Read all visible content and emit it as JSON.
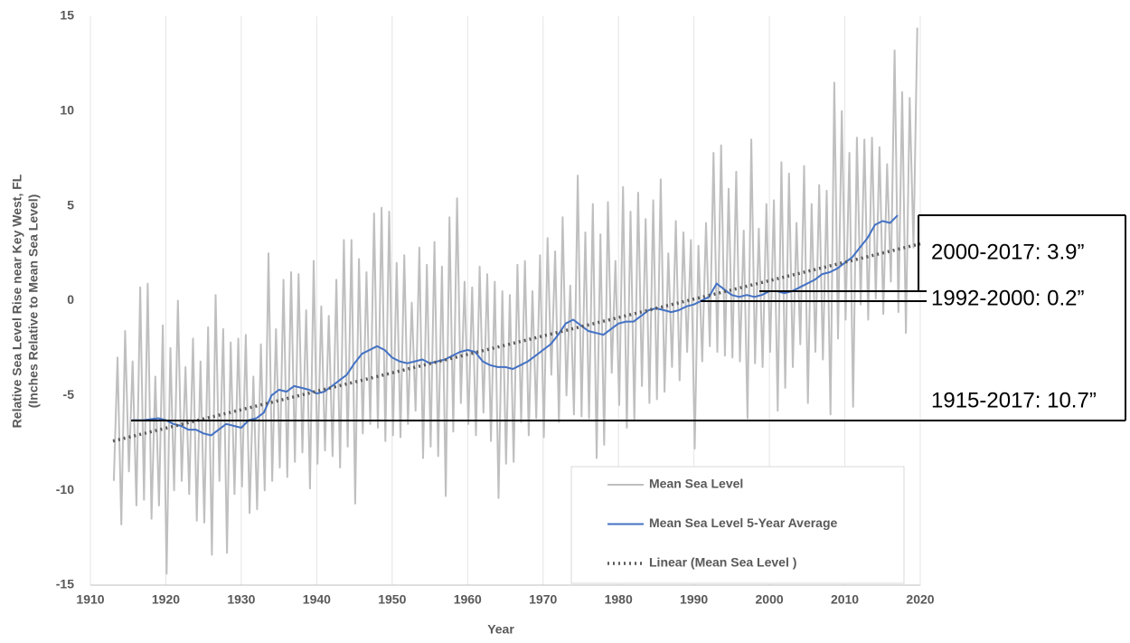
{
  "chart_data": {
    "type": "line",
    "x_label": "Year",
    "y_label": [
      "Relative Sea Level Rise near Key West, FL",
      "(Inches Relative to Mean Sea Level)"
    ],
    "xlim": [
      1910,
      2020
    ],
    "xticks": [
      1910,
      1920,
      1930,
      1940,
      1950,
      1960,
      1970,
      1980,
      1990,
      2000,
      2010,
      2020
    ],
    "ylim": [
      -15,
      15
    ],
    "yticks": [
      -15,
      -10,
      -5,
      0,
      5,
      10,
      15
    ],
    "grid": true,
    "legend": "lower right",
    "series": [
      {
        "name": "Mean Sea Level",
        "color": "#bfbfbf",
        "style": "solid",
        "x": [
          1913.1,
          1913.6,
          1914.1,
          1914.6,
          1915.1,
          1915.6,
          1916.1,
          1916.6,
          1917.1,
          1917.6,
          1918.1,
          1918.6,
          1919.1,
          1919.6,
          1920.1,
          1920.6,
          1921.1,
          1921.6,
          1922.1,
          1922.6,
          1923.1,
          1923.6,
          1924.1,
          1924.6,
          1925.1,
          1925.6,
          1926.1,
          1926.6,
          1927.1,
          1927.6,
          1928.1,
          1928.6,
          1929.1,
          1929.6,
          1930.1,
          1930.6,
          1931.1,
          1931.6,
          1932.1,
          1932.6,
          1933.1,
          1933.6,
          1934.1,
          1934.6,
          1935.1,
          1935.6,
          1936.1,
          1936.6,
          1937.1,
          1937.6,
          1938.1,
          1938.6,
          1939.1,
          1939.6,
          1940.1,
          1940.6,
          1941.1,
          1941.6,
          1942.1,
          1942.6,
          1943.1,
          1943.6,
          1944.1,
          1944.6,
          1945.1,
          1945.6,
          1946.1,
          1946.6,
          1947.1,
          1947.6,
          1948.1,
          1948.6,
          1949.1,
          1949.6,
          1950.1,
          1950.6,
          1951.1,
          1951.6,
          1952.1,
          1952.6,
          1953.1,
          1953.6,
          1954.1,
          1954.6,
          1955.1,
          1955.6,
          1956.1,
          1956.6,
          1957.1,
          1957.6,
          1958.1,
          1958.6,
          1959.1,
          1959.6,
          1960.1,
          1960.6,
          1961.1,
          1961.6,
          1962.1,
          1962.6,
          1963.1,
          1963.6,
          1964.1,
          1964.6,
          1965.1,
          1965.6,
          1966.1,
          1966.6,
          1967.1,
          1967.6,
          1968.1,
          1968.6,
          1969.1,
          1969.6,
          1970.1,
          1970.6,
          1971.1,
          1971.6,
          1972.1,
          1972.6,
          1973.1,
          1973.6,
          1974.1,
          1974.6,
          1975.1,
          1975.6,
          1976.1,
          1976.6,
          1977.1,
          1977.6,
          1978.1,
          1978.6,
          1979.1,
          1979.6,
          1980.1,
          1980.6,
          1981.1,
          1981.6,
          1982.1,
          1982.6,
          1983.1,
          1983.6,
          1984.1,
          1984.6,
          1985.1,
          1985.6,
          1986.1,
          1986.6,
          1987.1,
          1987.6,
          1988.1,
          1988.6,
          1989.1,
          1989.6,
          1990.1,
          1990.6,
          1991.1,
          1991.6,
          1992.1,
          1992.6,
          1993.1,
          1993.6,
          1994.1,
          1994.6,
          1995.1,
          1995.6,
          1996.1,
          1996.6,
          1997.1,
          1997.6,
          1998.1,
          1998.6,
          1999.1,
          1999.6,
          2000.1,
          2000.6,
          2001.1,
          2001.6,
          2002.1,
          2002.6,
          2003.1,
          2003.6,
          2004.1,
          2004.6,
          2005.1,
          2005.6,
          2006.1,
          2006.6,
          2007.1,
          2007.6,
          2008.1,
          2008.6,
          2009.1,
          2009.6,
          2010.1,
          2010.6,
          2011.1,
          2011.6,
          2012.1,
          2012.6,
          2013.1,
          2013.6,
          2014.1,
          2014.6,
          2015.1,
          2015.6,
          2016.1,
          2016.6,
          2017.1,
          2017.6,
          2018.1,
          2018.6,
          2019.1,
          2019.6
        ],
        "values": [
          -9.5,
          -3.0,
          -11.8,
          -1.6,
          -9.0,
          -3.2,
          -10.8,
          0.7,
          -10.5,
          0.9,
          -11.5,
          -4.0,
          -10.8,
          -1.3,
          -14.4,
          -2.5,
          -10.0,
          0.0,
          -9.5,
          -3.5,
          -10.2,
          -2.0,
          -11.6,
          -3.2,
          -11.7,
          -1.4,
          -13.4,
          0.3,
          -9.5,
          -1.5,
          -13.3,
          -2.2,
          -10.2,
          -2.0,
          -9.8,
          -1.8,
          -11.2,
          -4.0,
          -11.0,
          -2.3,
          -10.0,
          2.5,
          -9.5,
          -1.5,
          -8.8,
          1.1,
          -9.3,
          1.5,
          -8.5,
          1.4,
          -8.0,
          -0.5,
          -9.9,
          2.1,
          -8.6,
          -0.3,
          -7.9,
          -0.8,
          -8.2,
          1.1,
          -8.8,
          3.2,
          -7.7,
          3.2,
          -10.7,
          2.2,
          -7.0,
          1.5,
          -6.5,
          4.6,
          -6.7,
          4.9,
          -7.4,
          4.7,
          -7.1,
          2.0,
          -7.2,
          2.4,
          -6.5,
          -0.1,
          -5.8,
          2.8,
          -8.3,
          1.9,
          -7.7,
          3.1,
          -8.2,
          1.8,
          -10.3,
          4.4,
          -6.9,
          5.4,
          -5.4,
          1.0,
          -6.5,
          0.7,
          -7.1,
          1.8,
          -5.9,
          1.4,
          -7.4,
          1.0,
          -10.4,
          0.5,
          -8.6,
          0.3,
          -8.5,
          1.9,
          -6.4,
          2.1,
          -7.1,
          0.5,
          -6.2,
          2.4,
          -7.2,
          3.3,
          -3.9,
          2.6,
          -6.4,
          4.4,
          -5.0,
          0.8,
          -6.0,
          6.6,
          -6.1,
          3.6,
          -6.2,
          5.1,
          -8.3,
          3.5,
          -7.6,
          5.2,
          -3.8,
          2.1,
          -5.5,
          6.0,
          -6.7,
          4.7,
          -6.3,
          5.7,
          -4.5,
          4.3,
          -5.4,
          5.3,
          -5.2,
          6.4,
          -4.8,
          2.5,
          -3.5,
          4.2,
          -4.2,
          3.6,
          -2.7,
          3.2,
          -7.8,
          2.9,
          -3.2,
          4.1,
          -2.4,
          7.8,
          -2.7,
          8.2,
          -2.9,
          5.9,
          -3.0,
          6.8,
          -3.2,
          3.7,
          -6.2,
          8.5,
          -3.3,
          3.8,
          -3.5,
          5.1,
          -2.7,
          5.3,
          -5.8,
          7.3,
          -4.6,
          6.7,
          -3.5,
          4.1,
          -2.3,
          7.1,
          -5.4,
          5.1,
          -2.7,
          6.1,
          -3.1,
          5.8,
          -6.0,
          11.5,
          -2.0,
          10.0,
          -1.0,
          7.8,
          -5.6,
          8.6,
          -0.2,
          8.5,
          -1.0,
          8.6,
          0.1,
          8.1,
          -0.7,
          7.2,
          1.0,
          13.2,
          -0.6,
          11.0,
          -1.7,
          10.7,
          2.8,
          14.4
        ]
      },
      {
        "name": "Mean Sea Level 5-Year Average",
        "color": "#4472c4",
        "style": "solid",
        "x": [
          1915.5,
          1917,
          1919,
          1920,
          1921,
          1922,
          1923,
          1924,
          1925,
          1926,
          1927,
          1928,
          1929,
          1930,
          1931,
          1932,
          1933,
          1934,
          1935,
          1936,
          1937,
          1938,
          1939,
          1940,
          1941,
          1942,
          1943,
          1944,
          1945,
          1946,
          1947,
          1948,
          1949,
          1950,
          1951,
          1952,
          1953,
          1954,
          1955,
          1956,
          1957,
          1958,
          1959,
          1960,
          1961,
          1962,
          1963,
          1964,
          1965,
          1966,
          1967,
          1968,
          1969,
          1970,
          1971,
          1972,
          1973,
          1974,
          1975,
          1976,
          1977,
          1978,
          1979,
          1980,
          1981,
          1982,
          1983,
          1984,
          1985,
          1986,
          1987,
          1988,
          1989,
          1990,
          1991,
          1992,
          1993,
          1994,
          1995,
          1996,
          1997,
          1998,
          1999,
          2000,
          2001,
          2002,
          2003,
          2004,
          2005,
          2006,
          2007,
          2008,
          2009,
          2010,
          2011,
          2012,
          2013,
          2014,
          2015,
          2016,
          2017
        ],
        "values": [
          -6.3,
          -6.3,
          -6.2,
          -6.3,
          -6.5,
          -6.6,
          -6.8,
          -6.8,
          -7.0,
          -7.1,
          -6.8,
          -6.5,
          -6.6,
          -6.7,
          -6.3,
          -6.2,
          -5.9,
          -5.0,
          -4.7,
          -4.8,
          -4.5,
          -4.6,
          -4.7,
          -4.9,
          -4.8,
          -4.5,
          -4.2,
          -3.9,
          -3.3,
          -2.8,
          -2.6,
          -2.4,
          -2.6,
          -3.0,
          -3.2,
          -3.3,
          -3.2,
          -3.1,
          -3.3,
          -3.2,
          -3.1,
          -2.9,
          -2.7,
          -2.6,
          -2.7,
          -3.2,
          -3.4,
          -3.5,
          -3.5,
          -3.6,
          -3.4,
          -3.2,
          -2.9,
          -2.6,
          -2.3,
          -1.8,
          -1.2,
          -1.0,
          -1.3,
          -1.6,
          -1.7,
          -1.8,
          -1.5,
          -1.2,
          -1.1,
          -1.1,
          -0.8,
          -0.5,
          -0.4,
          -0.5,
          -0.6,
          -0.5,
          -0.3,
          -0.2,
          0.0,
          0.2,
          0.9,
          0.6,
          0.3,
          0.2,
          0.3,
          0.2,
          0.3,
          0.5,
          0.5,
          0.4,
          0.5,
          0.7,
          0.9,
          1.1,
          1.4,
          1.5,
          1.7,
          2.0,
          2.3,
          2.8,
          3.3,
          4.0,
          4.2,
          4.1,
          4.5
        ]
      },
      {
        "name": "Linear (Mean Sea Level )",
        "color": "#595959",
        "style": "dotted",
        "x": [
          1913,
          2020
        ],
        "values": [
          -7.4,
          3.0
        ]
      }
    ],
    "annotations": [
      "2000-2017: 3.9”",
      "1992-2000: 0.2”",
      "1915-2017: 10.7”"
    ]
  }
}
